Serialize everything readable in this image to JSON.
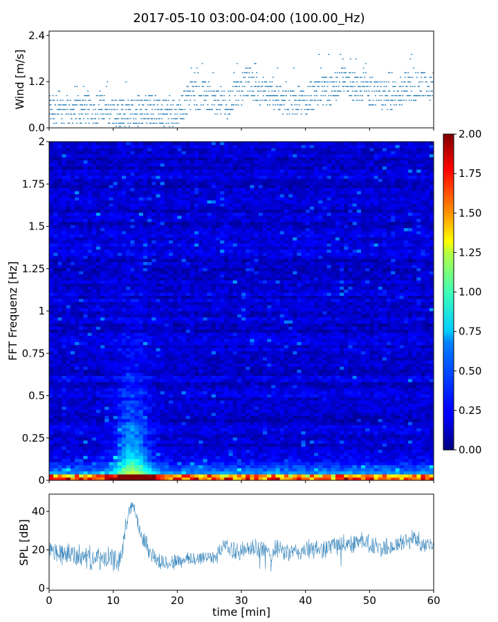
{
  "title": "2017-05-10 03:00-04:00 (100.00_Hz)",
  "chart_data": [
    {
      "type": "scatter",
      "ylabel": "Wind [m/s]",
      "xlim": [
        0,
        60
      ],
      "ylim": [
        0,
        2.4
      ],
      "yticks": [
        0.0,
        1.2,
        2.4
      ],
      "ytick_labels": [
        "0.0",
        "1.2",
        "2.4"
      ],
      "color": "#1f77b4",
      "trend": {
        "x": [
          0,
          5,
          8,
          10,
          12,
          14,
          16,
          18,
          20,
          21,
          22,
          24,
          26,
          28,
          29,
          30,
          31,
          32,
          33,
          34,
          36,
          38,
          40,
          41,
          42,
          44,
          45,
          46,
          47,
          48,
          49,
          50,
          52,
          54,
          55,
          56,
          57,
          58,
          59,
          60
        ],
        "y": [
          0.45,
          0.45,
          0.5,
          0.4,
          0.35,
          0.4,
          0.5,
          0.4,
          0.35,
          0.6,
          0.85,
          0.85,
          0.7,
          0.6,
          0.8,
          1.0,
          1.25,
          1.1,
          0.95,
          0.85,
          0.75,
          0.65,
          0.65,
          0.85,
          1.0,
          0.95,
          1.1,
          1.3,
          1.15,
          1.0,
          1.1,
          0.95,
          0.85,
          0.85,
          1.0,
          1.1,
          1.0,
          1.15,
          1.1,
          1.05
        ]
      }
    },
    {
      "type": "heatmap",
      "ylabel": "FFT Frequenz [Hz]",
      "xlim": [
        0,
        60
      ],
      "ylim": [
        0,
        2
      ],
      "yticks": [
        0,
        0.25,
        0.5,
        0.75,
        1,
        1.25,
        1.5,
        1.75,
        2
      ],
      "ytick_labels": [
        "0",
        "0.25",
        "0.5",
        "0.75",
        "1",
        "1.25",
        "1.5",
        "1.75",
        "2"
      ],
      "colormap": "jet",
      "colorbar": {
        "range": [
          0,
          2
        ],
        "ticks": [
          0.0,
          0.25,
          0.5,
          0.75,
          1.0,
          1.25,
          1.5,
          1.75,
          2.0
        ],
        "tick_labels": [
          "0.00",
          "0.25",
          "0.50",
          "0.75",
          "1.00",
          "1.25",
          "1.50",
          "1.75",
          "2.00"
        ]
      },
      "event": {
        "x_start": 10,
        "x_end": 17,
        "peak_x": 13,
        "reaches_hz": 0.75
      }
    },
    {
      "type": "line",
      "ylabel": "SPL [dB]",
      "xlabel": "time [min]",
      "xlim": [
        0,
        60
      ],
      "ylim": [
        -1,
        49
      ],
      "yticks": [
        0,
        20,
        40
      ],
      "ytick_labels": [
        "0",
        "20",
        "40"
      ],
      "xticks": [
        0,
        10,
        20,
        30,
        40,
        50,
        60
      ],
      "xtick_labels": [
        "0",
        "10",
        "20",
        "30",
        "40",
        "50",
        "60"
      ],
      "color": "#1f77b4",
      "envelope": {
        "x": [
          0,
          2,
          4,
          6,
          8,
          10,
          11,
          11.5,
          12,
          12.5,
          13,
          13.5,
          14,
          15,
          16,
          17,
          18,
          20,
          22,
          24,
          26,
          27,
          27.5,
          28,
          30,
          32,
          34,
          36,
          38,
          40,
          42,
          44,
          46,
          48,
          49,
          50,
          52,
          54,
          56,
          57,
          58,
          60
        ],
        "mean": [
          19,
          18,
          17,
          16,
          15,
          15,
          14,
          22,
          33,
          40,
          43,
          40,
          32,
          24,
          18,
          14,
          13,
          14,
          15,
          16,
          17,
          20,
          24,
          20,
          19,
          21,
          19,
          20,
          18,
          20,
          20,
          22,
          23,
          24,
          26,
          22,
          21,
          22,
          25,
          26,
          24,
          22
        ],
        "spread": [
          7,
          7,
          7,
          7,
          7,
          7,
          7,
          6,
          5,
          4,
          4,
          4,
          5,
          6,
          6,
          6,
          5,
          5,
          5,
          5,
          5,
          5,
          4,
          5,
          6,
          6,
          6,
          6,
          6,
          6,
          6,
          6,
          6,
          6,
          6,
          6,
          6,
          6,
          6,
          6,
          6,
          6
        ]
      }
    }
  ]
}
